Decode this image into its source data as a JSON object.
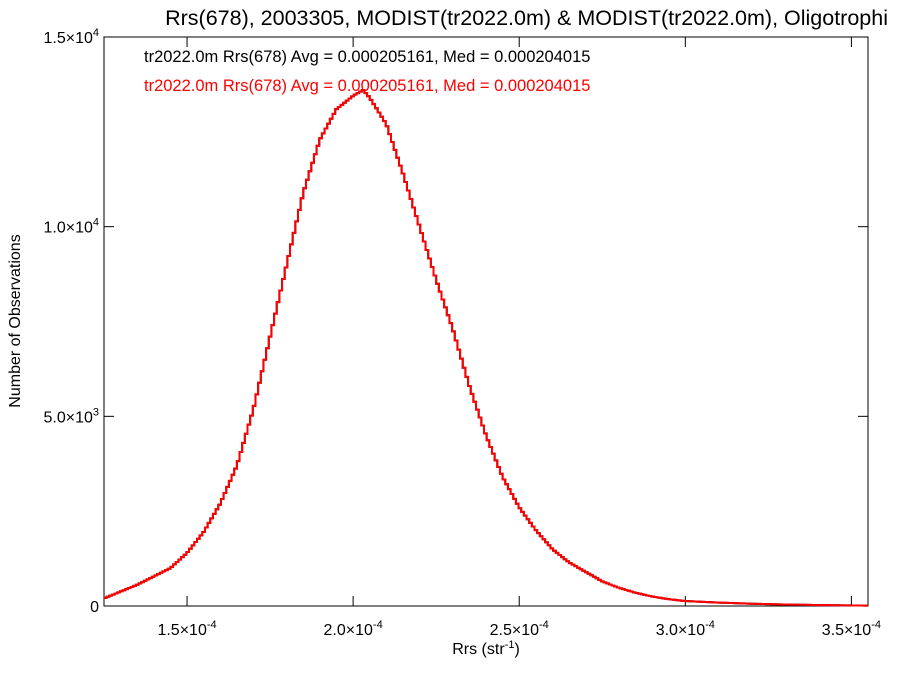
{
  "chart_data": {
    "type": "line",
    "title": "Rrs(678), 2003305, MODIST(tr2022.0m) & MODIST(tr2022.0m), Oligotrophi",
    "xlabel": "Rrs (str",
    "xlabel_sup": "-1",
    "xlabel_end": ")",
    "ylabel": "Number of Observations",
    "xlim": [
      0.000125,
      0.000355
    ],
    "ylim": [
      0,
      15000
    ],
    "x_ticks": [
      {
        "value": 0.00015,
        "mant": "1.5×10",
        "exp": "-4"
      },
      {
        "value": 0.0002,
        "mant": "2.0×10",
        "exp": "-4"
      },
      {
        "value": 0.00025,
        "mant": "2.5×10",
        "exp": "-4"
      },
      {
        "value": 0.0003,
        "mant": "3.0×10",
        "exp": "-4"
      },
      {
        "value": 0.00035,
        "mant": "3.5×10",
        "exp": "-4"
      }
    ],
    "y_ticks": [
      {
        "value": 0,
        "mant": "0",
        "exp": ""
      },
      {
        "value": 5000,
        "mant": "5.0×10",
        "exp": "3"
      },
      {
        "value": 10000,
        "mant": "1.0×10",
        "exp": "4"
      },
      {
        "value": 15000,
        "mant": "1.5×10",
        "exp": "4"
      }
    ],
    "annotations": [
      {
        "text": "tr2022.0m Rrs(678) Avg = 0.000205161, Med = 0.000204015",
        "color": "#000000"
      },
      {
        "text": "tr2022.0m Rrs(678) Avg = 0.000205161, Med = 0.000204015",
        "color": "#ff0000"
      }
    ],
    "series": [
      {
        "color": "#000000",
        "style": "step",
        "x": [
          0.000125,
          0.00013,
          0.000135,
          0.00014,
          0.000145,
          0.00015,
          0.000155,
          0.00016,
          0.000165,
          0.00017,
          0.000175,
          0.00018,
          0.000185,
          0.00019,
          0.000195,
          0.0002,
          0.000203,
          0.000205,
          0.00021,
          0.000215,
          0.00022,
          0.000225,
          0.00023,
          0.000235,
          0.00024,
          0.000245,
          0.00025,
          0.000255,
          0.00026,
          0.000265,
          0.00027,
          0.000275,
          0.00028,
          0.000285,
          0.00029,
          0.000295,
          0.0003,
          0.00031,
          0.00032,
          0.00033,
          0.00034,
          0.000355
        ],
        "y": [
          200,
          380,
          560,
          780,
          1000,
          1400,
          1950,
          2700,
          3700,
          5200,
          7100,
          9000,
          10900,
          12300,
          13100,
          13450,
          13600,
          13400,
          12700,
          11400,
          10000,
          8600,
          7300,
          5800,
          4500,
          3400,
          2600,
          2000,
          1500,
          1150,
          900,
          650,
          480,
          350,
          250,
          180,
          130,
          90,
          60,
          40,
          25,
          10
        ]
      },
      {
        "color": "#ff0000",
        "style": "step",
        "x": [
          0.000125,
          0.00013,
          0.000135,
          0.00014,
          0.000145,
          0.00015,
          0.000155,
          0.00016,
          0.000165,
          0.00017,
          0.000175,
          0.00018,
          0.000185,
          0.00019,
          0.000195,
          0.0002,
          0.000203,
          0.000205,
          0.00021,
          0.000215,
          0.00022,
          0.000225,
          0.00023,
          0.000235,
          0.00024,
          0.000245,
          0.00025,
          0.000255,
          0.00026,
          0.000265,
          0.00027,
          0.000275,
          0.00028,
          0.000285,
          0.00029,
          0.000295,
          0.0003,
          0.00031,
          0.00032,
          0.00033,
          0.00034,
          0.000355
        ],
        "y": [
          200,
          380,
          560,
          780,
          1000,
          1400,
          1950,
          2700,
          3700,
          5200,
          7100,
          9000,
          10900,
          12300,
          13100,
          13450,
          13600,
          13400,
          12700,
          11400,
          10000,
          8600,
          7300,
          5800,
          4500,
          3400,
          2600,
          2000,
          1500,
          1150,
          900,
          650,
          480,
          350,
          250,
          180,
          130,
          90,
          60,
          40,
          25,
          10
        ]
      }
    ]
  }
}
